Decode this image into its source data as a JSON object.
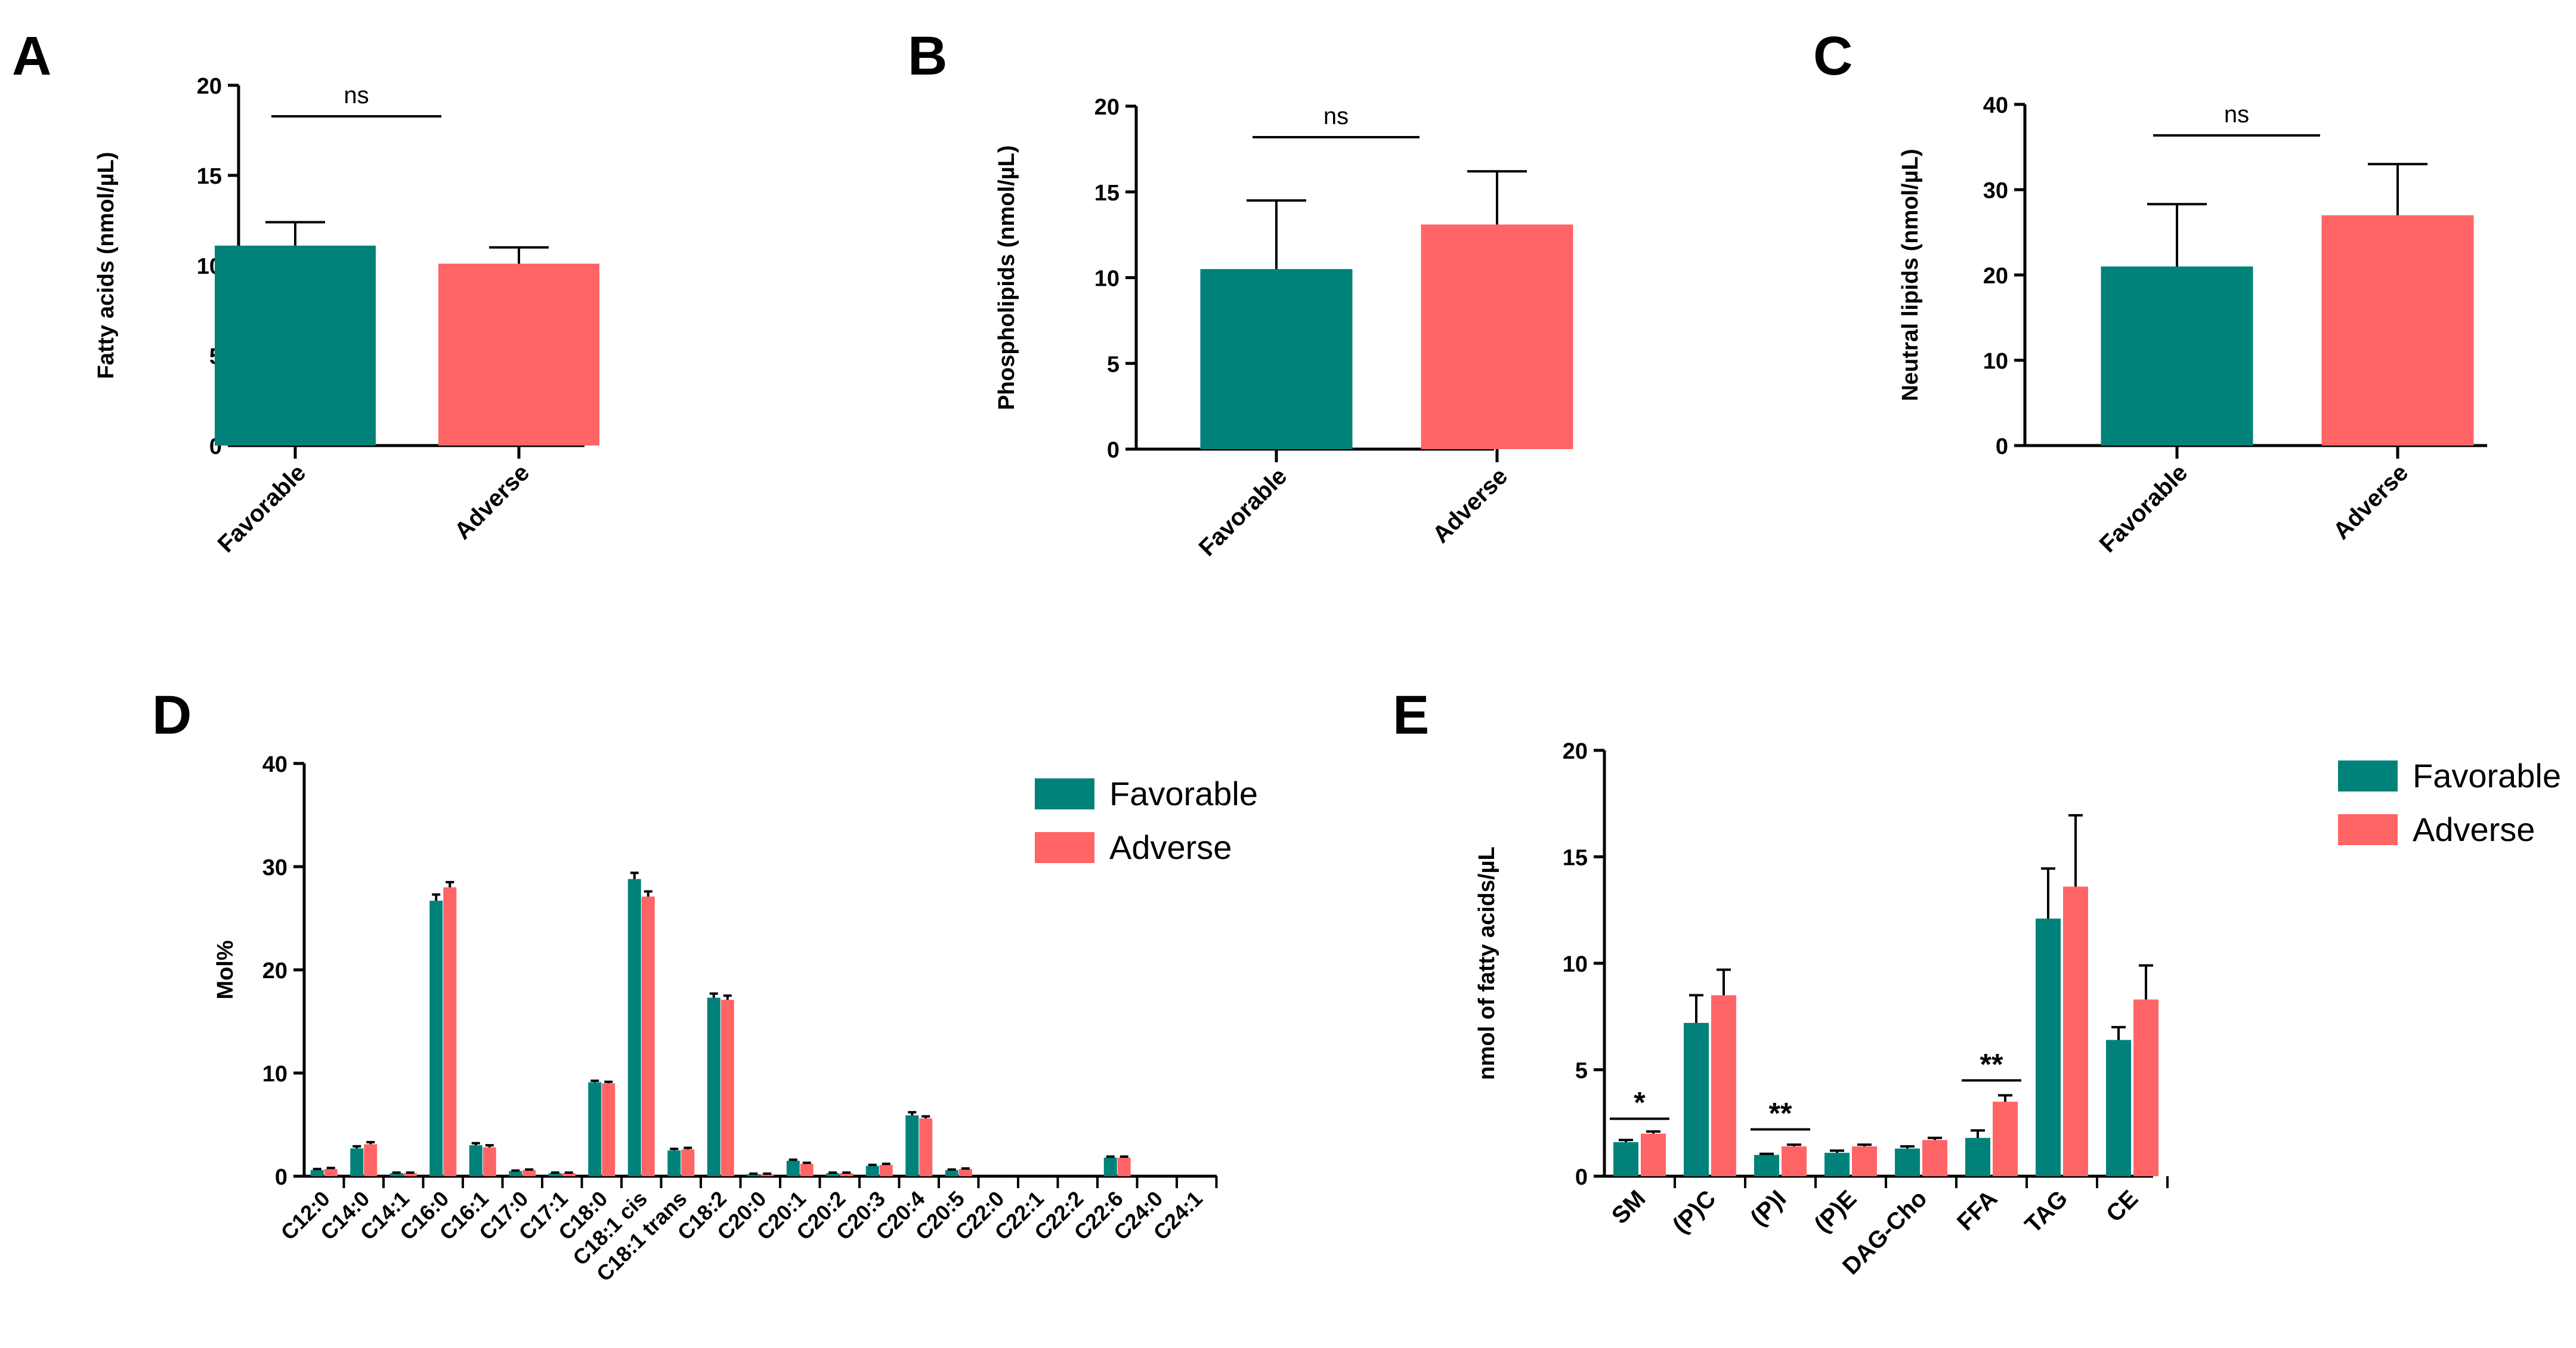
{
  "colors": {
    "favorable": "#00827a",
    "adverse": "#ff6566",
    "axis": "#000000"
  },
  "legend": [
    {
      "key": "favorable",
      "label": "Favorable"
    },
    {
      "key": "adverse",
      "label": "Adverse"
    }
  ],
  "chart_data": [
    {
      "id": "A",
      "panel_label": "A",
      "type": "bar",
      "categories": [
        "Favorable",
        "Adverse"
      ],
      "values": [
        11.1,
        10.1
      ],
      "errors": [
        1.3,
        0.9
      ],
      "ylabel": "Fatty acids (nmol/µL)",
      "ylim": [
        0,
        20
      ],
      "yticks": [
        0,
        5,
        10,
        15,
        20
      ],
      "annotations": [
        {
          "text": "ns",
          "from": 0,
          "to": 1
        }
      ],
      "grid": false,
      "legend": null
    },
    {
      "id": "B",
      "panel_label": "B",
      "type": "bar",
      "categories": [
        "Favorable",
        "Adverse"
      ],
      "values": [
        10.5,
        13.1
      ],
      "errors": [
        4.0,
        3.1
      ],
      "ylabel": "Phospholipids (nmol/µL)",
      "ylim": [
        0,
        20
      ],
      "yticks": [
        0,
        5,
        10,
        15,
        20
      ],
      "annotations": [
        {
          "text": "ns",
          "from": 0,
          "to": 1
        }
      ],
      "grid": false,
      "legend": null
    },
    {
      "id": "C",
      "panel_label": "C",
      "type": "bar",
      "categories": [
        "Favorable",
        "Adverse"
      ],
      "values": [
        21,
        27
      ],
      "errors": [
        7.3,
        6.0
      ],
      "ylabel": "Neutral lipids (nmol/µL)",
      "ylim": [
        0,
        40
      ],
      "yticks": [
        0,
        10,
        20,
        30,
        40
      ],
      "annotations": [
        {
          "text": "ns",
          "from": 0,
          "to": 1
        }
      ],
      "grid": false,
      "legend": null
    },
    {
      "id": "D",
      "panel_label": "D",
      "type": "bar",
      "categories": [
        "C12:0",
        "C14:0",
        "C14:1",
        "C16:0",
        "C16:1",
        "C17:0",
        "C17:1",
        "C18:0",
        "C18:1 cis",
        "C18:1 trans",
        "C18:2",
        "C20:0",
        "C20:1",
        "C20:2",
        "C20:3",
        "C20:4",
        "C20:5",
        "C22:0",
        "C22:1",
        "C22:2",
        "C22:6",
        "C24:0",
        "C24:1"
      ],
      "series": [
        {
          "name": "Favorable",
          "key": "favorable",
          "values": [
            0.6,
            2.7,
            0.3,
            26.7,
            3.0,
            0.5,
            0.3,
            9.1,
            28.8,
            2.5,
            17.3,
            0.2,
            1.5,
            0.3,
            1.0,
            5.9,
            0.6,
            0,
            0,
            0,
            1.8,
            0,
            0
          ],
          "errors": [
            0.1,
            0.2,
            0.05,
            0.6,
            0.2,
            0.05,
            0.05,
            0.15,
            0.6,
            0.15,
            0.4,
            0.05,
            0.1,
            0.05,
            0.1,
            0.3,
            0.05,
            0,
            0,
            0,
            0.1,
            0,
            0
          ]
        },
        {
          "name": "Adverse",
          "key": "adverse",
          "values": [
            0.7,
            3.1,
            0.3,
            28.0,
            2.8,
            0.6,
            0.3,
            9.0,
            27.1,
            2.6,
            17.1,
            0.2,
            1.2,
            0.3,
            1.1,
            5.6,
            0.7,
            0,
            0,
            0,
            1.8,
            0,
            0
          ],
          "errors": [
            0.1,
            0.2,
            0.05,
            0.5,
            0.2,
            0.05,
            0.05,
            0.15,
            0.5,
            0.15,
            0.4,
            0.05,
            0.1,
            0.05,
            0.1,
            0.2,
            0.05,
            0,
            0,
            0,
            0.1,
            0,
            0
          ]
        }
      ],
      "ylabel": "Mol%",
      "ylim": [
        0,
        40
      ],
      "yticks": [
        0,
        10,
        20,
        30,
        40
      ],
      "grid": false,
      "legend": "top-right"
    },
    {
      "id": "E",
      "panel_label": "E",
      "type": "bar",
      "categories": [
        "SM",
        "(P)C",
        "(P)I",
        "(P)E",
        "DAG-Cho",
        "FFA",
        "TAG",
        "CE"
      ],
      "series": [
        {
          "name": "Favorable",
          "key": "favorable",
          "values": [
            1.6,
            7.2,
            1.0,
            1.1,
            1.3,
            1.8,
            12.1,
            6.4
          ],
          "errors": [
            0.1,
            1.3,
            0.05,
            0.1,
            0.1,
            0.35,
            2.35,
            0.6
          ]
        },
        {
          "name": "Adverse",
          "key": "adverse",
          "values": [
            2.0,
            8.5,
            1.4,
            1.4,
            1.7,
            3.5,
            13.6,
            8.3
          ],
          "errors": [
            0.1,
            1.2,
            0.08,
            0.08,
            0.1,
            0.3,
            3.35,
            1.6
          ]
        }
      ],
      "annotations": [
        {
          "text": "*",
          "category": 0,
          "y": 2.7
        },
        {
          "text": "**",
          "category": 2,
          "y": 2.2
        },
        {
          "text": "**",
          "category": 5,
          "y": 4.5
        }
      ],
      "ylabel": "nmol of fatty acids/µL",
      "ylim": [
        0,
        20
      ],
      "yticks": [
        0,
        5,
        10,
        15,
        20
      ],
      "grid": false,
      "legend": "top-right"
    }
  ]
}
